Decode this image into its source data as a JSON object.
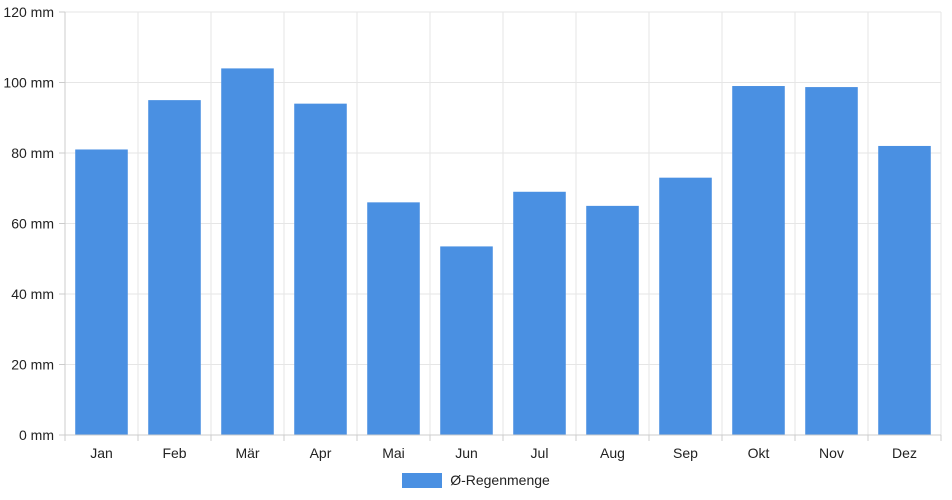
{
  "chart_data": {
    "type": "bar",
    "categories": [
      "Jan",
      "Feb",
      "Mär",
      "Apr",
      "Mai",
      "Jun",
      "Jul",
      "Aug",
      "Sep",
      "Okt",
      "Nov",
      "Dez"
    ],
    "series": [
      {
        "name": "Ø-Regenmenge",
        "values": [
          81,
          95,
          104,
          94,
          66,
          53.5,
          69,
          65,
          73,
          99,
          98.7,
          82
        ],
        "color": "#4a90e2"
      }
    ],
    "yticks": [
      "0 mm",
      "20 mm",
      "40 mm",
      "60 mm",
      "80 mm",
      "100 mm",
      "120 mm"
    ],
    "ylim": [
      0,
      120
    ],
    "grid": true,
    "legend_position": "bottom"
  }
}
